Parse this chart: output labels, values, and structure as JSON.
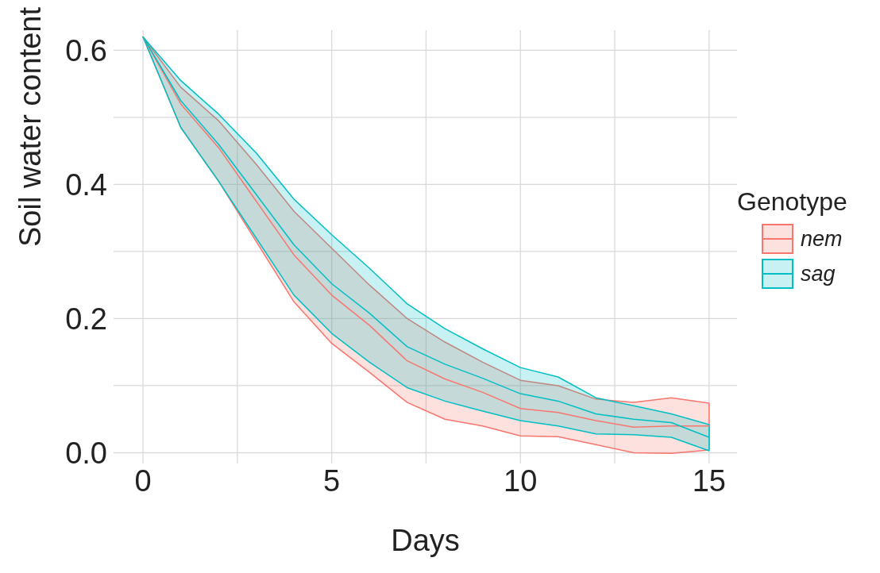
{
  "chart_data": {
    "type": "line",
    "xlabel": "Days",
    "ylabel": "Soil water content",
    "legend_title": "Genotype",
    "legend": "right",
    "grid": true,
    "marker": "none",
    "line_style": "solid",
    "x": [
      0,
      1,
      2,
      3,
      4,
      5,
      6,
      7,
      8,
      9,
      10,
      11,
      12,
      13,
      14,
      15
    ],
    "xlim": [
      -0.78,
      15.74
    ],
    "ylim": [
      -0.016,
      0.63
    ],
    "xticks": [
      0,
      {
        "value": 2.5,
        "label": null
      },
      5,
      {
        "value": 7.5,
        "label": null
      },
      10,
      {
        "value": 12.5,
        "label": null
      },
      15
    ],
    "yticks": [
      {
        "value": 0,
        "label": "0.0"
      },
      {
        "value": 0.1,
        "label": null
      },
      {
        "value": 0.2,
        "label": "0.2"
      },
      {
        "value": 0.3,
        "label": null
      },
      {
        "value": 0.4,
        "label": "0.4"
      },
      {
        "value": 0.5,
        "label": null
      },
      {
        "value": 0.6,
        "label": "0.6"
      }
    ],
    "series": [
      {
        "name": "nem",
        "color": "#f8766d",
        "values": [
          0.62,
          0.52,
          0.455,
          0.375,
          0.295,
          0.235,
          0.19,
          0.137,
          0.11,
          0.09,
          0.066,
          0.06,
          0.048,
          0.038,
          0.04,
          0.04
        ],
        "lower": [
          0.62,
          0.485,
          0.405,
          0.315,
          0.225,
          0.163,
          0.12,
          0.075,
          0.05,
          0.04,
          0.025,
          0.024,
          0.012,
          0.0,
          -0.001,
          0.004
        ],
        "upper": [
          0.62,
          0.545,
          0.495,
          0.43,
          0.36,
          0.305,
          0.25,
          0.2,
          0.165,
          0.135,
          0.108,
          0.1,
          0.08,
          0.075,
          0.082,
          0.074
        ]
      },
      {
        "name": "sag",
        "color": "#00bfc4",
        "values": [
          0.62,
          0.525,
          0.46,
          0.385,
          0.31,
          0.252,
          0.208,
          0.158,
          0.132,
          0.111,
          0.088,
          0.077,
          0.058,
          0.05,
          0.045,
          0.023
        ],
        "lower": [
          0.62,
          0.485,
          0.405,
          0.32,
          0.235,
          0.178,
          0.135,
          0.097,
          0.077,
          0.062,
          0.048,
          0.04,
          0.028,
          0.027,
          0.023,
          0.003
        ],
        "upper": [
          0.62,
          0.555,
          0.505,
          0.447,
          0.378,
          0.325,
          0.275,
          0.222,
          0.185,
          0.155,
          0.127,
          0.113,
          0.082,
          0.07,
          0.058,
          0.042
        ]
      }
    ]
  }
}
